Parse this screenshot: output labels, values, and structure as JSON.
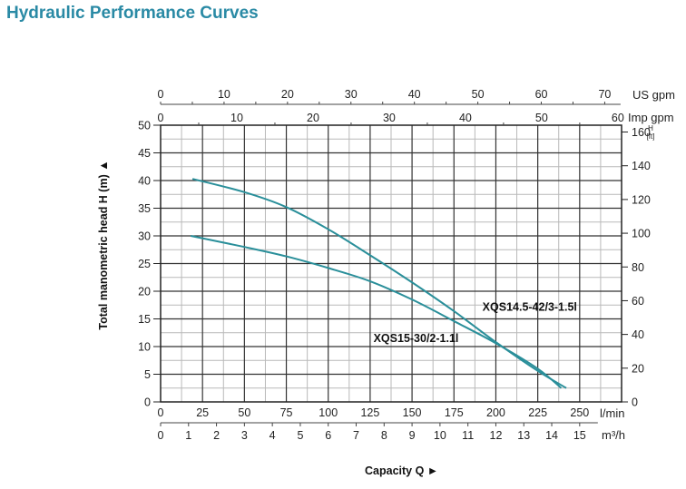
{
  "title": "Hydraulic Performance Curves",
  "chart_data": {
    "type": "line",
    "title": "Hydraulic Performance Curves",
    "xlabel": "Capacity Q",
    "ylabel": "Total manometric head H (m)",
    "xlim": [
      0,
      275
    ],
    "ylim": [
      0,
      50
    ],
    "grid": true,
    "x_axes": {
      "primary": {
        "unit": "l/min",
        "ticks": [
          0,
          25,
          50,
          75,
          100,
          125,
          150,
          175,
          200,
          225,
          250
        ]
      },
      "m3h": {
        "unit": "m³/h",
        "ticks": [
          0,
          1,
          2,
          3,
          4,
          5,
          6,
          7,
          8,
          9,
          10,
          11,
          12,
          13,
          14,
          15
        ],
        "factor_lmin_per_unit": 16.6667
      },
      "us_gpm": {
        "unit": "US gpm",
        "ticks": [
          0,
          10,
          20,
          30,
          40,
          50,
          60,
          70
        ],
        "factor_lmin_per_unit": 3.785
      },
      "imp_gpm": {
        "unit": "Imp gpm",
        "ticks": [
          0,
          10,
          20,
          30,
          40,
          50,
          60
        ],
        "factor_lmin_per_unit": 4.546
      }
    },
    "y_axes": {
      "left": {
        "unit": "m",
        "ticks": [
          0,
          5,
          10,
          15,
          20,
          25,
          30,
          35,
          40,
          45,
          50
        ]
      },
      "right": {
        "unit_top": "H",
        "unit_bottom": "[ft]",
        "ticks": [
          0,
          20,
          40,
          60,
          80,
          100,
          120,
          140,
          160
        ],
        "factor_m_per_unit": 0.3048
      }
    },
    "series": [
      {
        "name": "XQS14.5-42/3-1.5l",
        "color": "#2a8f9a",
        "x": [
          19,
          50,
          75,
          100,
          125,
          150,
          175,
          200,
          225,
          242
        ],
        "y": [
          40.3,
          37.9,
          35.2,
          31.2,
          26.5,
          21.6,
          16.4,
          10.8,
          5.6,
          2.5
        ]
      },
      {
        "name": "XQS15-30/2-1.1l",
        "color": "#2a8f9a",
        "x": [
          18,
          50,
          75,
          100,
          125,
          150,
          175,
          200,
          225,
          239
        ],
        "y": [
          30.0,
          28.0,
          26.3,
          24.2,
          21.8,
          18.5,
          14.6,
          10.6,
          6.0,
          2.5
        ]
      }
    ],
    "annotations": [
      {
        "text": "XQS14.5-42/3-1.5l",
        "x": 192,
        "y": 16.5
      },
      {
        "text": "XQS15-30/2-1.1l",
        "x": 127,
        "y": 10.8
      }
    ]
  }
}
